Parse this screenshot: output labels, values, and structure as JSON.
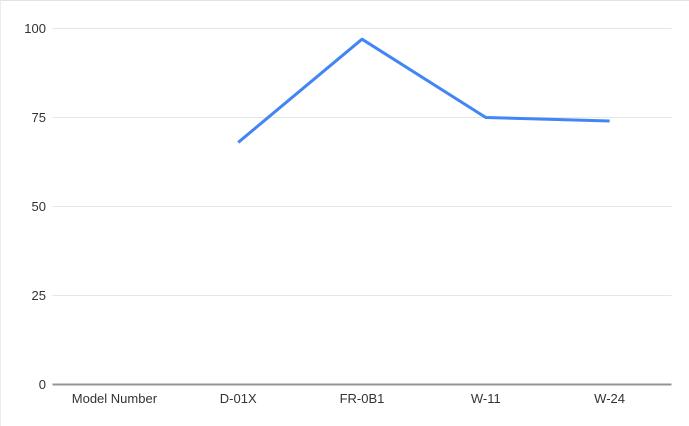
{
  "chart": {
    "title": "",
    "legend": "none"
  },
  "chart_data": {
    "type": "line",
    "categories": [
      "Model Number",
      "D-01X",
      "FR-0B1",
      "W-11",
      "W-24"
    ],
    "series": [
      {
        "name": "",
        "values": [
          null,
          68,
          97,
          75,
          74
        ],
        "color": "#4285f4"
      }
    ],
    "title": "",
    "xlabel": "",
    "ylabel": "",
    "y_ticks": [
      0,
      25,
      50,
      75,
      100
    ],
    "ylim": [
      0,
      100
    ],
    "grid": true,
    "legend_position": "none"
  },
  "colors": {
    "line": "#4285f4",
    "gridline": "#e6e6e6",
    "axis_line": "#949494",
    "label_text": "#333333",
    "background": "#ffffff",
    "frame_border": "#e3e3e3"
  }
}
